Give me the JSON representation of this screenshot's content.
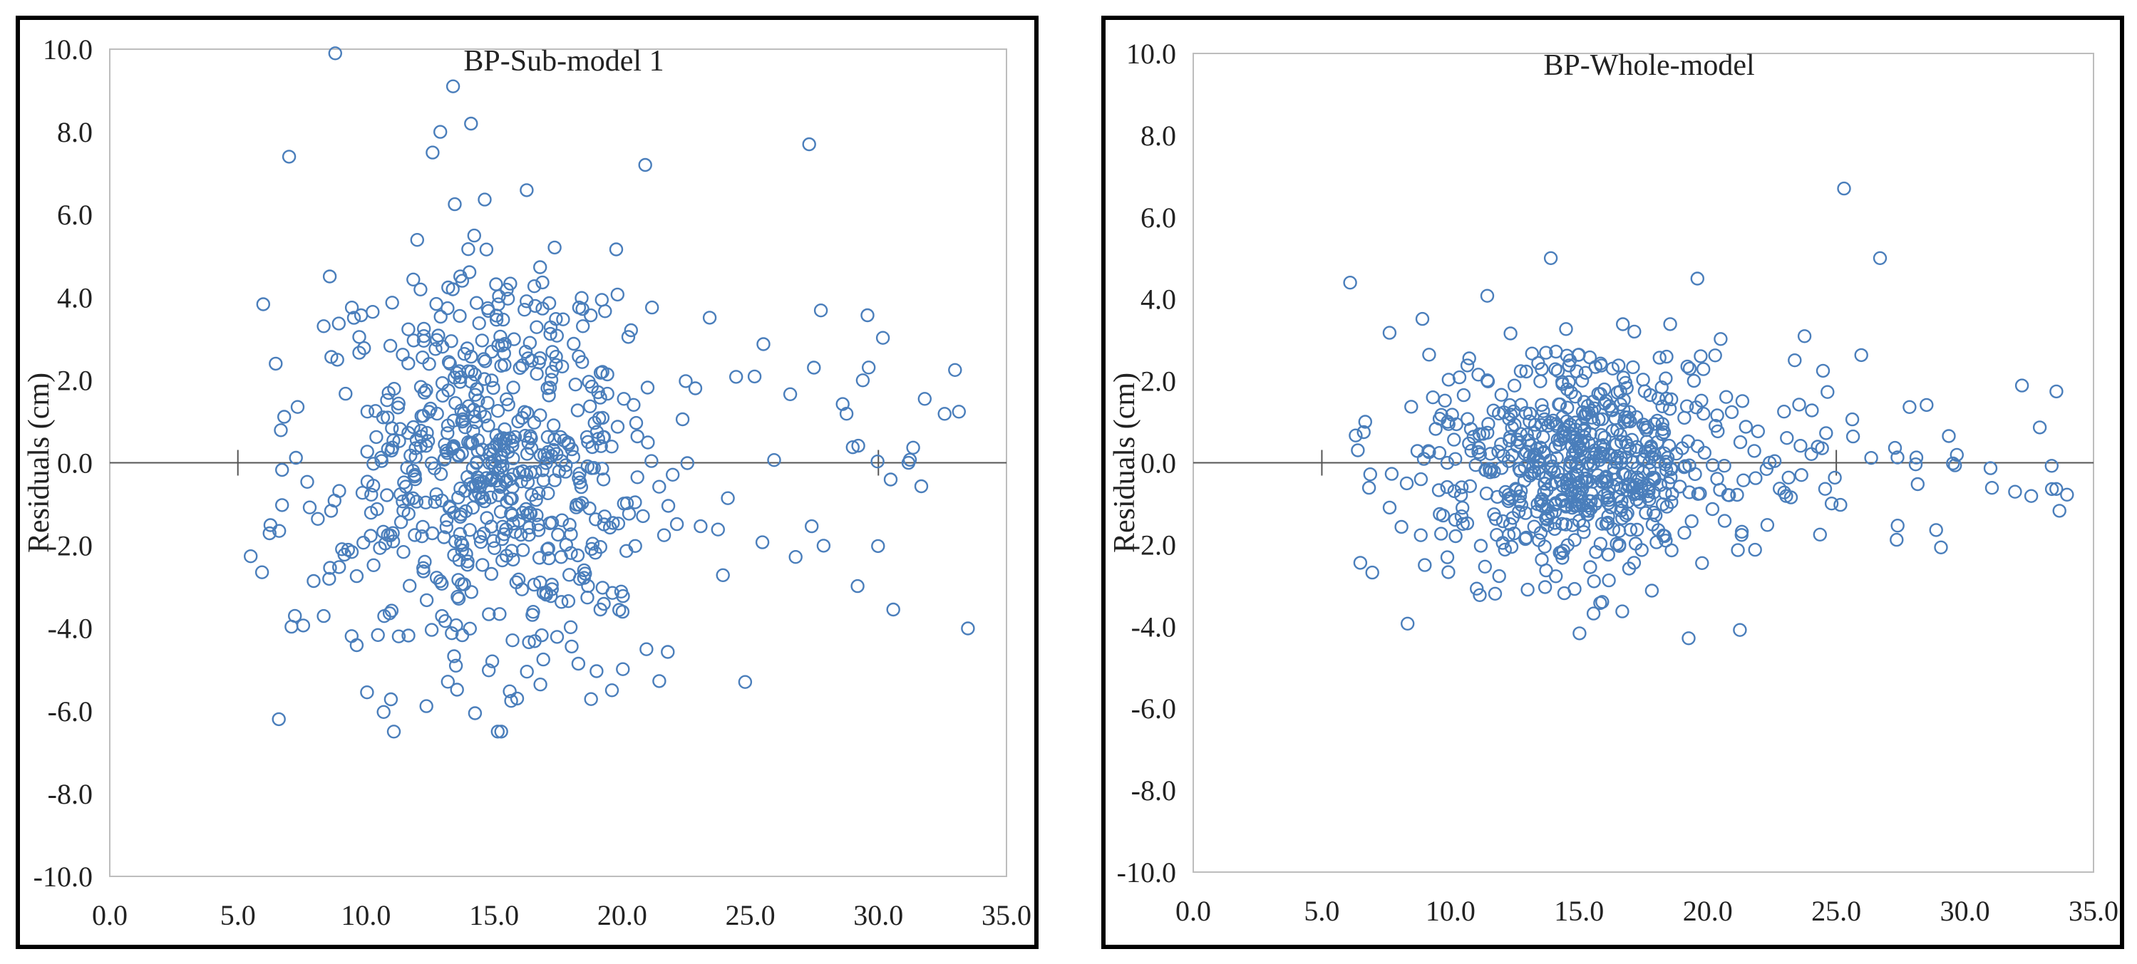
{
  "chart_data": [
    {
      "type": "scatter",
      "title": "BP-Sub-model 1",
      "xlabel": "",
      "ylabel": "Residuals (cm)",
      "xlim": [
        0,
        35
      ],
      "ylim": [
        -10,
        10
      ],
      "xticks": [
        "0.0",
        "5.0",
        "10.0",
        "15.0",
        "20.0",
        "25.0",
        "30.0",
        "35.0"
      ],
      "yticks": [
        "10.0",
        "8.0",
        "6.0",
        "4.0",
        "2.0",
        "0.0",
        "-2.0",
        "-4.0",
        "-6.0",
        "-8.0",
        "-10.0"
      ],
      "zero_line_ticks_x": [
        5,
        30
      ],
      "grid": false,
      "marker": "open-circle",
      "color": "#4A7EBB",
      "series": [
        {
          "name": "Residuals",
          "n_points": 700,
          "x_range": [
            5.5,
            33.5
          ],
          "y_sd": 2.6,
          "notable_points": [
            [
              8.8,
              9.9
            ],
            [
              13.4,
              9.1
            ],
            [
              12.9,
              8.0
            ],
            [
              14.1,
              8.2
            ],
            [
              12.6,
              7.5
            ],
            [
              7.0,
              7.4
            ],
            [
              27.3,
              7.7
            ],
            [
              20.9,
              7.2
            ],
            [
              6.6,
              -6.2
            ],
            [
              15.9,
              -5.7
            ],
            [
              19.6,
              -5.5
            ],
            [
              24.8,
              -5.3
            ]
          ]
        }
      ]
    },
    {
      "type": "scatter",
      "title": "BP-Whole-model",
      "xlabel": "",
      "ylabel": "Residuals (cm)",
      "xlim": [
        0,
        35
      ],
      "ylim": [
        -10,
        10
      ],
      "xticks": [
        "0.0",
        "5.0",
        "10.0",
        "15.0",
        "20.0",
        "25.0",
        "30.0",
        "35.0"
      ],
      "yticks": [
        "10.0",
        "8.0",
        "6.0",
        "4.0",
        "2.0",
        "0.0",
        "-2.0",
        "-4.0",
        "-6.0",
        "-8.0",
        "-10.0"
      ],
      "zero_line_ticks_x": [
        5,
        25
      ],
      "grid": false,
      "marker": "open-circle",
      "color": "#4A7EBB",
      "series": [
        {
          "name": "Residuals",
          "n_points": 700,
          "x_range": [
            5.8,
            34
          ],
          "y_sd": 1.3,
          "notable_points": [
            [
              25.3,
              6.7
            ],
            [
              26.7,
              5.0
            ],
            [
              13.9,
              5.0
            ],
            [
              19.6,
              4.5
            ],
            [
              6.1,
              4.4
            ],
            [
              15.9,
              -3.4
            ],
            [
              13.0,
              -3.1
            ],
            [
              9.0,
              -2.5
            ]
          ]
        }
      ]
    }
  ]
}
